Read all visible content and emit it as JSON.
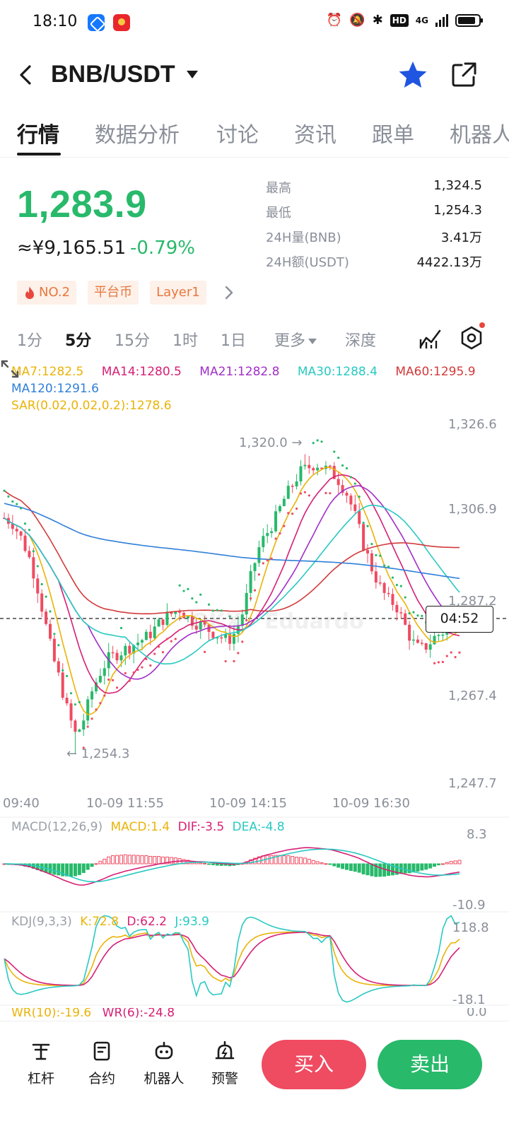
{
  "status_bar": {
    "time": "18:10",
    "network": "4G"
  },
  "header": {
    "title": "BNB/USDT",
    "star_color": "#1f55e0"
  },
  "tabs": [
    {
      "label": "行情"
    },
    {
      "label": "数据分析"
    },
    {
      "label": "讨论"
    },
    {
      "label": "资讯"
    },
    {
      "label": "跟单"
    },
    {
      "label": "机器人"
    }
  ],
  "ticker": {
    "price": "1,283.9",
    "cny": "≈¥9,165.51",
    "change": "-0.79%",
    "stats": [
      {
        "label": "最高",
        "value": "1,324.5"
      },
      {
        "label": "最低",
        "value": "1,254.3"
      },
      {
        "label": "24H量(BNB)",
        "value": "3.41万"
      },
      {
        "label": "24H额(USDT)",
        "value": "4422.13万"
      }
    ],
    "tags": [
      "NO.2",
      "平台币",
      "Layer1"
    ]
  },
  "intervals": {
    "items": [
      "1分",
      "5分",
      "15分",
      "1时",
      "1日"
    ],
    "more": "更多",
    "depth": "深度",
    "active": "5分"
  },
  "indicators": {
    "ma7": "MA7:1282.5",
    "ma14": "MA14:1280.5",
    "ma21": "MA21:1282.8",
    "ma30": "MA30:1288.4",
    "ma60": "MA60:1295.9",
    "ma120": "MA120:1291.6",
    "sar": "SAR(0.02,0.02,0.2):1278.6",
    "macd_title": "MACD(12,26,9)",
    "macd": "MACD:1.4",
    "dif": "DIF:-3.5",
    "dea": "DEA:-4.8",
    "kdj_title": "KDJ(9,3,3)",
    "k": "K:72.8",
    "d": "D:62.2",
    "j": "J:93.9",
    "wr10": "WR(10):-19.6",
    "wr6": "WR(6):-24.8"
  },
  "colors": {
    "up": "#28b96b",
    "down": "#ef4b61",
    "ma7": "#eab308",
    "ma14": "#d61f75",
    "ma21": "#a12fc7",
    "ma30": "#29c9c2",
    "ma60": "#d23a3a",
    "ma120": "#2f7fd9"
  },
  "chart": {
    "price_axis": [
      "1,326.6",
      "1,306.9",
      "1,287.2",
      "1,267.4",
      "1,247.7"
    ],
    "time_axis": [
      "09:40",
      "10-09 11:55",
      "10-09 14:15",
      "10-09 16:30"
    ],
    "high_label": "1,320.0 →",
    "low_label": "← 1,254.3",
    "countdown": "04:52",
    "macd_axis": [
      "8.3",
      "-10.9"
    ],
    "kdj_axis": [
      "118.8",
      "-18.1"
    ],
    "wr_axis_top": "0.0",
    "watermark": "OKX · Eduardo"
  },
  "chart_data": {
    "type": "candlestick",
    "symbol": "BNB/USDT",
    "interval": "5分",
    "ylim": [
      1247.7,
      1326.6
    ],
    "high": 1320.0,
    "low": 1254.3,
    "last": 1283.9,
    "close_path": [
      1306,
      1305,
      1302,
      1298,
      1292,
      1284,
      1276,
      1270,
      1263,
      1258,
      1262,
      1268,
      1272,
      1275,
      1276,
      1277,
      1278,
      1279,
      1280,
      1282,
      1284,
      1285,
      1286,
      1284,
      1283,
      1282,
      1281,
      1280,
      1279,
      1281,
      1286,
      1294,
      1300,
      1303,
      1306,
      1310,
      1313,
      1316,
      1317,
      1318,
      1317,
      1316,
      1314,
      1311,
      1306,
      1300,
      1295,
      1291,
      1288,
      1287,
      1283,
      1279,
      1277,
      1278,
      1280,
      1281,
      1282,
      1283.9
    ]
  },
  "bottom_bar": {
    "items": [
      {
        "label": "杠杆"
      },
      {
        "label": "合约"
      },
      {
        "label": "机器人"
      },
      {
        "label": "预警"
      }
    ],
    "buy": "买入",
    "sell": "卖出"
  }
}
